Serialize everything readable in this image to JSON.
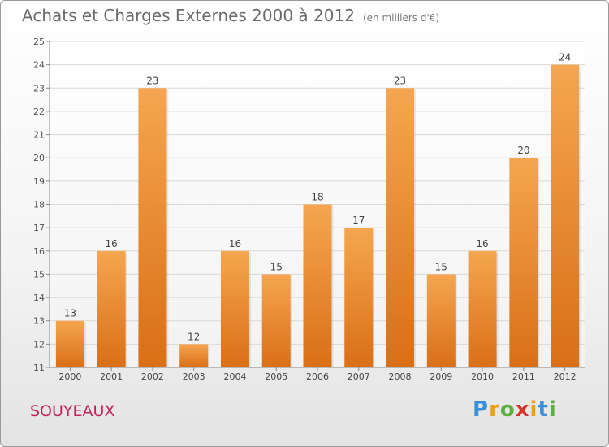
{
  "header": {
    "title": "Achats et Charges Externes 2000 à 2012",
    "unit": "(en milliers d'€)"
  },
  "commune": "SOUYEAUX",
  "logo": {
    "letters": [
      "P",
      "r",
      "o",
      "x",
      "i",
      "t",
      "i"
    ],
    "colors": [
      "#3a8fd9",
      "#e8a21a",
      "#5bb03b",
      "#d9342b",
      "#e8a21a",
      "#3a8fd9",
      "#5bb03b"
    ]
  },
  "chart_data": {
    "type": "bar",
    "title": "Achats et Charges Externes 2000 à 2012",
    "subtitle": "(en milliers d'€)",
    "categories": [
      "2000",
      "2001",
      "2002",
      "2003",
      "2004",
      "2005",
      "2006",
      "2007",
      "2008",
      "2009",
      "2010",
      "2011",
      "2012"
    ],
    "values": [
      13,
      16,
      23,
      12,
      16,
      15,
      18,
      17,
      23,
      15,
      16,
      20,
      24
    ],
    "ylim": [
      11,
      25
    ],
    "yticks": [
      11,
      12,
      13,
      14,
      15,
      16,
      17,
      18,
      19,
      20,
      21,
      22,
      23,
      24,
      25
    ],
    "xlabel": "",
    "ylabel": "",
    "grid": true,
    "bar_color_top": "#f5a650",
    "bar_color_bottom": "#d96f16",
    "grid_color": "#d8d8d8"
  }
}
